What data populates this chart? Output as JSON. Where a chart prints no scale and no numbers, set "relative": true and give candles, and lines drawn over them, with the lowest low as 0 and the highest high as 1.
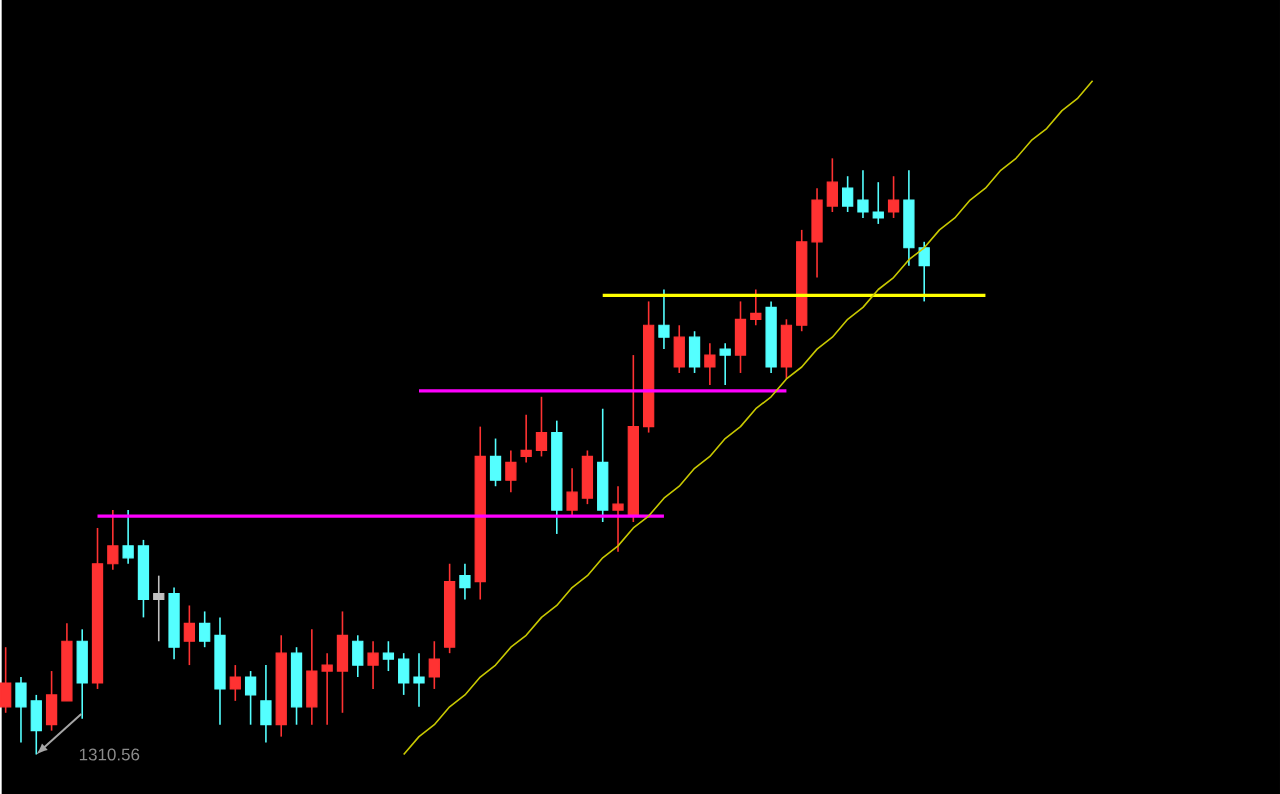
{
  "chart_data": {
    "type": "candlestick",
    "relative": true,
    "categories": [
      null,
      null,
      null,
      null,
      null,
      null,
      null,
      null,
      null,
      null,
      null,
      null,
      null,
      null,
      null,
      null,
      null,
      null,
      null,
      null,
      null,
      null,
      null,
      null,
      null,
      null,
      null,
      null,
      null,
      null,
      null,
      null,
      null,
      null,
      null,
      null,
      null,
      null,
      null,
      null,
      null,
      null,
      null,
      null,
      null,
      null,
      null,
      null,
      null,
      null,
      null,
      null,
      null,
      null,
      null,
      null,
      null,
      null,
      null,
      null,
      null,
      null,
      null,
      null,
      null,
      null,
      null,
      null,
      null,
      null,
      null,
      null
    ],
    "ohlc": [
      [
        0.08,
        0.18,
        0.07,
        0.12
      ],
      [
        0.12,
        0.13,
        0.02,
        0.08
      ],
      [
        0.09,
        0.1,
        0.0,
        0.04
      ],
      [
        0.05,
        0.14,
        0.04,
        0.1
      ],
      [
        0.09,
        0.22,
        0.09,
        0.19
      ],
      [
        0.19,
        0.21,
        0.06,
        0.12
      ],
      [
        0.12,
        0.38,
        0.11,
        0.32
      ],
      [
        0.32,
        0.41,
        0.31,
        0.35
      ],
      [
        0.35,
        0.41,
        0.32,
        0.33
      ],
      [
        0.35,
        0.36,
        0.23,
        0.26
      ],
      [
        0.27,
        0.3,
        0.19,
        0.26
      ],
      [
        0.27,
        0.28,
        0.16,
        0.18
      ],
      [
        0.19,
        0.25,
        0.15,
        0.22
      ],
      [
        0.22,
        0.24,
        0.18,
        0.19
      ],
      [
        0.2,
        0.23,
        0.05,
        0.11
      ],
      [
        0.11,
        0.15,
        0.09,
        0.13
      ],
      [
        0.13,
        0.14,
        0.05,
        0.1
      ],
      [
        0.09,
        0.15,
        0.02,
        0.05
      ],
      [
        0.05,
        0.2,
        0.03,
        0.17
      ],
      [
        0.17,
        0.18,
        0.05,
        0.08
      ],
      [
        0.08,
        0.21,
        0.05,
        0.14
      ],
      [
        0.14,
        0.17,
        0.05,
        0.15
      ],
      [
        0.14,
        0.24,
        0.07,
        0.2
      ],
      [
        0.19,
        0.2,
        0.13,
        0.15
      ],
      [
        0.15,
        0.19,
        0.11,
        0.17
      ],
      [
        0.17,
        0.19,
        0.14,
        0.16
      ],
      [
        0.16,
        0.17,
        0.1,
        0.12
      ],
      [
        0.13,
        0.17,
        0.08,
        0.12
      ],
      [
        0.13,
        0.19,
        0.11,
        0.16
      ],
      [
        0.18,
        0.32,
        0.17,
        0.29
      ],
      [
        0.3,
        0.32,
        0.26,
        0.28
      ],
      [
        0.29,
        0.55,
        0.26,
        0.5
      ],
      [
        0.5,
        0.53,
        0.45,
        0.46
      ],
      [
        0.46,
        0.51,
        0.44,
        0.49
      ],
      [
        0.5,
        0.57,
        0.49,
        0.51
      ],
      [
        0.51,
        0.6,
        0.5,
        0.54
      ],
      [
        0.54,
        0.56,
        0.37,
        0.41
      ],
      [
        0.41,
        0.48,
        0.4,
        0.44
      ],
      [
        0.43,
        0.51,
        0.42,
        0.5
      ],
      [
        0.49,
        0.58,
        0.39,
        0.41
      ],
      [
        0.41,
        0.45,
        0.34,
        0.42
      ],
      [
        0.4,
        0.67,
        0.39,
        0.55
      ],
      [
        0.55,
        0.76,
        0.54,
        0.72
      ],
      [
        0.72,
        0.78,
        0.68,
        0.7
      ],
      [
        0.65,
        0.72,
        0.64,
        0.7
      ],
      [
        0.7,
        0.71,
        0.64,
        0.65
      ],
      [
        0.65,
        0.69,
        0.62,
        0.67
      ],
      [
        0.68,
        0.69,
        0.62,
        0.67
      ],
      [
        0.67,
        0.76,
        0.64,
        0.73
      ],
      [
        0.73,
        0.78,
        0.72,
        0.74
      ],
      [
        0.75,
        0.76,
        0.64,
        0.65
      ],
      [
        0.65,
        0.73,
        0.63,
        0.72
      ],
      [
        0.72,
        0.88,
        0.71,
        0.86
      ],
      [
        0.86,
        0.95,
        0.8,
        0.93
      ],
      [
        0.92,
        1.0,
        0.91,
        0.96
      ],
      [
        0.95,
        0.97,
        0.91,
        0.92
      ],
      [
        0.93,
        0.98,
        0.9,
        0.91
      ],
      [
        0.91,
        0.96,
        0.89,
        0.9
      ],
      [
        0.91,
        0.97,
        0.9,
        0.93
      ],
      [
        0.93,
        0.98,
        0.82,
        0.85
      ],
      [
        0.85,
        0.86,
        0.76,
        0.82
      ],
      null,
      null,
      null,
      null,
      null,
      null,
      null,
      null,
      null,
      null,
      null
    ],
    "colors": [
      "#ff3232",
      "#54ffff",
      "#54ffff",
      "#ff3232",
      "#ff3232",
      "#54ffff",
      "#ff3232",
      "#ff3232",
      "#54ffff",
      "#54ffff",
      "#c0c0c0",
      "#54ffff",
      "#ff3232",
      "#54ffff",
      "#54ffff",
      "#ff3232",
      "#54ffff",
      "#54ffff",
      "#ff3232",
      "#54ffff",
      "#ff3232",
      "#ff3232",
      "#ff3232",
      "#54ffff",
      "#ff3232",
      "#54ffff",
      "#54ffff",
      "#54ffff",
      "#ff3232",
      "#ff3232",
      "#54ffff",
      "#ff3232",
      "#54ffff",
      "#ff3232",
      "#ff3232",
      "#ff3232",
      "#54ffff",
      "#ff3232",
      "#ff3232",
      "#54ffff",
      "#ff3232",
      "#ff3232",
      "#ff3232",
      "#54ffff",
      "#ff3232",
      "#54ffff",
      "#ff3232",
      "#54ffff",
      "#ff3232",
      "#ff3232",
      "#54ffff",
      "#ff3232",
      "#ff3232",
      "#ff3232",
      "#ff3232",
      "#54ffff",
      "#54ffff",
      "#54ffff",
      "#ff3232",
      "#54ffff",
      "#54ffff",
      null,
      null,
      null,
      null,
      null,
      null,
      null,
      null,
      null,
      null,
      null
    ],
    "series": [
      {
        "type": "line",
        "color": "#ff00ff",
        "values": [
          null,
          null,
          null,
          null,
          null,
          null,
          0.4,
          0.4,
          0.4,
          0.4,
          0.4,
          0.4,
          0.4,
          0.4,
          0.4,
          0.4,
          0.4,
          0.4,
          0.4,
          0.4,
          0.4,
          0.4,
          0.4,
          0.4,
          0.4,
          0.4,
          0.4,
          0.4,
          0.4,
          0.4,
          0.4,
          0.4,
          0.4,
          0.4,
          0.4,
          0.4,
          0.4,
          0.4,
          0.4,
          0.4,
          0.4,
          0.4,
          0.4,
          0.4,
          null,
          null,
          null,
          null,
          null,
          null,
          null,
          null,
          null,
          null,
          null,
          null,
          null,
          null,
          null,
          null,
          null,
          null,
          null,
          null,
          null,
          null,
          null,
          null,
          null,
          null,
          null,
          null
        ]
      },
      {
        "type": "line",
        "color": "#ff00ff",
        "values": [
          null,
          null,
          null,
          null,
          null,
          null,
          null,
          null,
          null,
          null,
          null,
          null,
          null,
          null,
          null,
          null,
          null,
          null,
          null,
          null,
          null,
          null,
          null,
          null,
          null,
          null,
          null,
          0.61,
          0.61,
          0.61,
          0.61,
          0.61,
          0.61,
          0.61,
          0.61,
          0.61,
          0.61,
          0.61,
          0.61,
          0.61,
          0.61,
          0.61,
          0.61,
          0.61,
          0.61,
          0.61,
          0.61,
          0.61,
          0.61,
          0.61,
          0.61,
          0.61,
          null,
          null,
          null,
          null,
          null,
          null,
          null,
          null,
          null,
          null,
          null,
          null,
          null,
          null,
          null,
          null,
          null,
          null,
          null,
          null
        ]
      },
      {
        "type": "line",
        "color": "#ffff00",
        "values": [
          null,
          null,
          null,
          null,
          null,
          null,
          null,
          null,
          null,
          null,
          null,
          null,
          null,
          null,
          null,
          null,
          null,
          null,
          null,
          null,
          null,
          null,
          null,
          null,
          null,
          null,
          null,
          null,
          null,
          null,
          null,
          null,
          null,
          null,
          null,
          null,
          null,
          null,
          null,
          0.77,
          0.77,
          0.77,
          0.77,
          0.77,
          0.77,
          0.77,
          0.77,
          0.77,
          0.77,
          0.77,
          0.77,
          0.77,
          0.77,
          0.77,
          0.77,
          0.77,
          0.77,
          0.77,
          0.77,
          0.77,
          0.77,
          0.77,
          0.77,
          0.77,
          0.77,
          null,
          null,
          null,
          null,
          null,
          null,
          null
        ]
      },
      {
        "type": "line",
        "color": "#c8c800",
        "values": [
          null,
          null,
          null,
          null,
          null,
          null,
          null,
          null,
          null,
          null,
          null,
          null,
          null,
          null,
          null,
          null,
          null,
          null,
          null,
          null,
          null,
          null,
          null,
          null,
          null,
          null,
          0.0,
          0.03,
          0.05,
          0.08,
          0.1,
          0.13,
          0.15,
          0.18,
          0.2,
          0.23,
          0.25,
          0.28,
          0.3,
          0.33,
          0.35,
          0.38,
          0.4,
          0.43,
          0.45,
          0.48,
          0.5,
          0.53,
          0.55,
          0.58,
          0.6,
          0.63,
          0.65,
          0.68,
          0.7,
          0.73,
          0.75,
          0.78,
          0.8,
          0.83,
          0.85,
          0.88,
          0.9,
          0.93,
          0.95,
          0.98,
          1.0,
          1.03,
          1.05,
          1.08,
          1.1,
          1.13
        ]
      }
    ],
    "annotations": [
      "1310.56"
    ]
  }
}
